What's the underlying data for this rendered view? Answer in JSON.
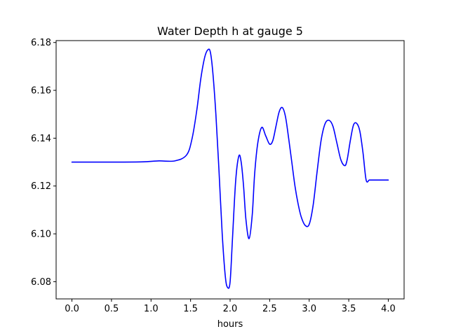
{
  "chart_data": {
    "type": "line",
    "title": "Water Depth h at gauge 5",
    "xlabel": "hours",
    "ylabel": "",
    "xlim": [
      -0.2,
      4.2
    ],
    "ylim": [
      6.0728,
      6.1808
    ],
    "grid": false,
    "x_ticks": [
      0.0,
      0.5,
      1.0,
      1.5,
      2.0,
      2.5,
      3.0,
      3.5,
      4.0
    ],
    "x_tick_labels": [
      "0.0",
      "0.5",
      "1.0",
      "1.5",
      "2.0",
      "2.5",
      "3.0",
      "3.5",
      "4.0"
    ],
    "y_ticks": [
      6.08,
      6.1,
      6.12,
      6.14,
      6.16,
      6.18
    ],
    "y_tick_labels": [
      "6.08",
      "6.10",
      "6.12",
      "6.14",
      "6.16",
      "6.18"
    ],
    "series": [
      {
        "name": "",
        "color": "#0000ff",
        "x": [
          0.0,
          0.3,
          0.6,
          0.9,
          1.1,
          1.3,
          1.45,
          1.52,
          1.58,
          1.63,
          1.68,
          1.72,
          1.75,
          1.78,
          1.82,
          1.86,
          1.9,
          1.94,
          1.97,
          2.0,
          2.03,
          2.07,
          2.11,
          2.14,
          2.17,
          2.2,
          2.24,
          2.28,
          2.31,
          2.35,
          2.4,
          2.45,
          2.5,
          2.54,
          2.58,
          2.62,
          2.66,
          2.7,
          2.74,
          2.78,
          2.82,
          2.86,
          2.9,
          2.95,
          3.0,
          3.05,
          3.1,
          3.15,
          3.2,
          3.25,
          3.3,
          3.35,
          3.4,
          3.45,
          3.48,
          3.52,
          3.56,
          3.6,
          3.64,
          3.68,
          3.72,
          3.76,
          3.8,
          3.84,
          3.88,
          3.92,
          3.96,
          4.0
        ],
        "y": [
          6.13,
          6.13,
          6.13,
          6.1301,
          6.1305,
          6.1305,
          6.133,
          6.14,
          6.152,
          6.165,
          6.174,
          6.177,
          6.176,
          6.168,
          6.15,
          6.126,
          6.1,
          6.082,
          6.0775,
          6.08,
          6.098,
          6.122,
          6.1325,
          6.13,
          6.12,
          6.106,
          6.098,
          6.108,
          6.125,
          6.138,
          6.1445,
          6.141,
          6.1375,
          6.139,
          6.145,
          6.151,
          6.1528,
          6.149,
          6.14,
          6.13,
          6.12,
          6.1125,
          6.107,
          6.1035,
          6.104,
          6.112,
          6.126,
          6.139,
          6.146,
          6.1475,
          6.145,
          6.138,
          6.131,
          6.1285,
          6.131,
          6.139,
          6.1455,
          6.1462,
          6.143,
          6.134,
          6.1225,
          6.1225,
          6.1225,
          6.1225,
          6.1225,
          6.1225,
          6.1225,
          6.1225
        ]
      }
    ]
  }
}
